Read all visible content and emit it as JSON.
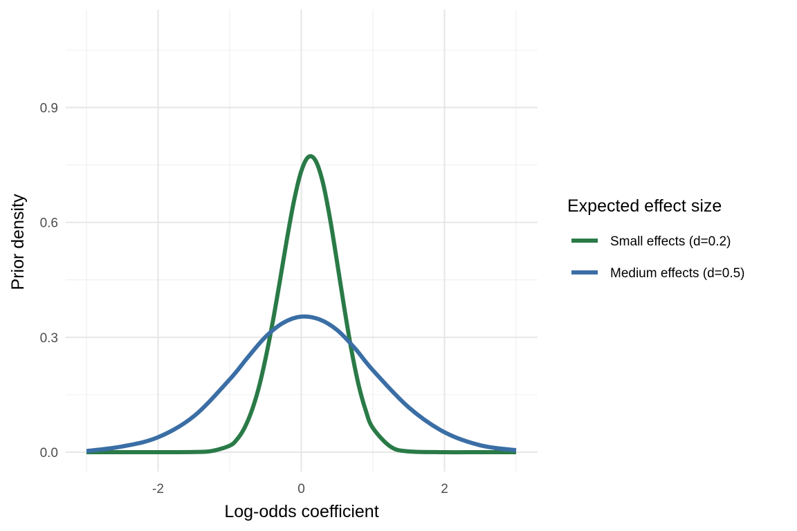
{
  "chart_data": {
    "type": "line",
    "title": "",
    "xlabel": "Log-odds coefficient",
    "ylabel": "Prior density",
    "xlim": [
      -3,
      3
    ],
    "ylim": [
      0,
      1.1
    ],
    "x_ticks": [
      -2,
      0,
      2
    ],
    "x_tick_labels": [
      "-2",
      "0",
      "2"
    ],
    "y_ticks": [
      0.0,
      0.3,
      0.6,
      0.9
    ],
    "y_tick_labels": [
      "0.0",
      "0.3",
      "0.6",
      "0.9"
    ],
    "grid": true,
    "legend": {
      "title": "Expected effect size",
      "position": "right"
    },
    "series": [
      {
        "name": "Small effects (d=0.2)",
        "color": "#2a7a47",
        "x": [
          -3.0,
          -2.5,
          -2.0,
          -1.5,
          -1.25,
          -1.0,
          -0.9,
          -0.8,
          -0.7,
          -0.6,
          -0.5,
          -0.4,
          -0.3,
          -0.2,
          -0.1,
          0.0,
          0.1,
          0.2,
          0.3,
          0.4,
          0.5,
          0.6,
          0.7,
          0.8,
          0.9,
          1.0,
          1.25,
          1.5,
          2.0,
          2.5,
          3.0
        ],
        "y": [
          0.0,
          0.0,
          0.0,
          0.0004,
          0.003,
          0.017,
          0.033,
          0.061,
          0.104,
          0.164,
          0.244,
          0.339,
          0.446,
          0.557,
          0.658,
          0.734,
          0.771,
          0.761,
          0.705,
          0.611,
          0.496,
          0.377,
          0.267,
          0.176,
          0.109,
          0.063,
          0.014,
          0.002,
          0.0,
          0.0,
          0.0
        ]
      },
      {
        "name": "Medium effects (d=0.5)",
        "color": "#3a6ea5",
        "x": [
          -3.0,
          -2.5,
          -2.0,
          -1.5,
          -1.0,
          -0.75,
          -0.5,
          -0.25,
          0.0,
          0.25,
          0.5,
          0.75,
          1.0,
          1.5,
          2.0,
          2.5,
          3.0
        ],
        "y": [
          0.003,
          0.015,
          0.039,
          0.094,
          0.19,
          0.247,
          0.301,
          0.338,
          0.354,
          0.347,
          0.319,
          0.271,
          0.214,
          0.117,
          0.052,
          0.018,
          0.005
        ]
      }
    ]
  }
}
